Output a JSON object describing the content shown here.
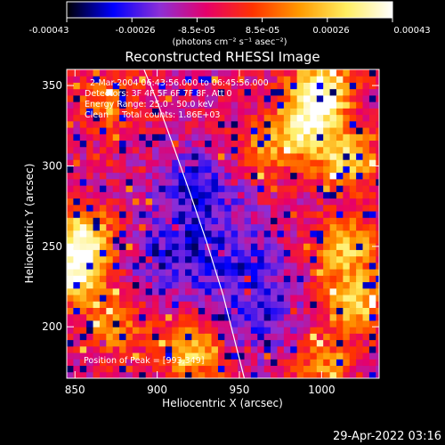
{
  "colorbar": {
    "tick_labels": [
      "-0.00043",
      "-0.00026",
      "-8.5e-05",
      "8.5e-05",
      "0.00026",
      "0.00043"
    ],
    "unit_label": "(photons cm⁻² s⁻¹ asec⁻²)",
    "stops": [
      "#000000",
      "#0000ff",
      "#8d2fd6",
      "#e6006a",
      "#ff3300",
      "#ff9a00",
      "#ffee60",
      "#ffffff"
    ]
  },
  "chart_data": {
    "type": "heatmap",
    "title": "Reconstructed RHESSI Image",
    "xlabel": "Heliocentric X (arcsec)",
    "ylabel": "Heliocentric Y (arcsec)",
    "xlim": [
      845,
      1035
    ],
    "ylim": [
      168,
      360
    ],
    "xticks": [
      850,
      900,
      950,
      1000
    ],
    "yticks": [
      200,
      250,
      300,
      350
    ],
    "color_range": [
      -0.00043,
      0.00043
    ],
    "limb_curve": {
      "x": [
        890,
        900,
        910,
        920,
        930,
        940,
        950,
        953
      ],
      "y": [
        365,
        340,
        312,
        283,
        253,
        220,
        180,
        168
      ]
    },
    "annotations": [
      "2-Mar-2004 06:43:56.000 to 06:45:56.000",
      "Detectors: 3F 4F 5F 6F 7F 8F, Att 0",
      "Energy Range: 25.0 - 50.0 keV",
      "Clean     Total counts: 1.86E+03"
    ],
    "peak_label": "Position of Peak = [993,349]",
    "peak_position": [
      993,
      349
    ],
    "hot_regions": [
      {
        "x": 1000,
        "y": 348,
        "level": 0.95
      },
      {
        "x": 990,
        "y": 325,
        "level": 0.8
      },
      {
        "x": 1015,
        "y": 305,
        "level": 0.75
      },
      {
        "x": 855,
        "y": 255,
        "level": 0.9
      },
      {
        "x": 850,
        "y": 232,
        "level": 0.85
      },
      {
        "x": 1015,
        "y": 250,
        "level": 0.7
      },
      {
        "x": 1020,
        "y": 215,
        "level": 0.75
      },
      {
        "x": 920,
        "y": 185,
        "level": 0.7
      },
      {
        "x": 1000,
        "y": 178,
        "level": 0.5
      },
      {
        "x": 870,
        "y": 340,
        "level": 0.45
      },
      {
        "x": 965,
        "y": 310,
        "level": 0.45
      },
      {
        "x": 875,
        "y": 200,
        "level": 0.45
      }
    ],
    "cold_regions": [
      {
        "x": 925,
        "y": 285,
        "level": 0.6
      },
      {
        "x": 910,
        "y": 245,
        "level": 0.55
      },
      {
        "x": 950,
        "y": 240,
        "level": 0.5
      },
      {
        "x": 965,
        "y": 205,
        "level": 0.45
      }
    ]
  },
  "timestamp": "29-Apr-2022 03:16"
}
